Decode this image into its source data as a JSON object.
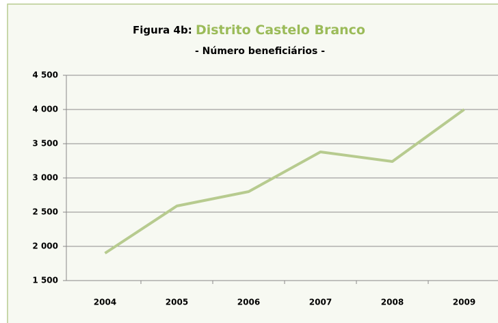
{
  "chart_data": {
    "type": "line",
    "title_prefix": "Figura 4b:",
    "title": "Distrito Castelo Branco",
    "subtitle": "- Número beneficiários -",
    "categories": [
      "2004",
      "2005",
      "2006",
      "2007",
      "2008",
      "2009"
    ],
    "values": [
      1900,
      2590,
      2800,
      3380,
      3240,
      4000
    ],
    "color": "#b7cb8f",
    "ylim": [
      1500,
      4500
    ],
    "yticks": [
      {
        "value": 1500,
        "label": "1 500"
      },
      {
        "value": 2000,
        "label": "2 000"
      },
      {
        "value": 2500,
        "label": "2 500"
      },
      {
        "value": 3000,
        "label": "3 000"
      },
      {
        "value": 3500,
        "label": "3 500"
      },
      {
        "value": 4000,
        "label": "4 000"
      },
      {
        "value": 4500,
        "label": "4 500"
      }
    ],
    "grid": true
  }
}
